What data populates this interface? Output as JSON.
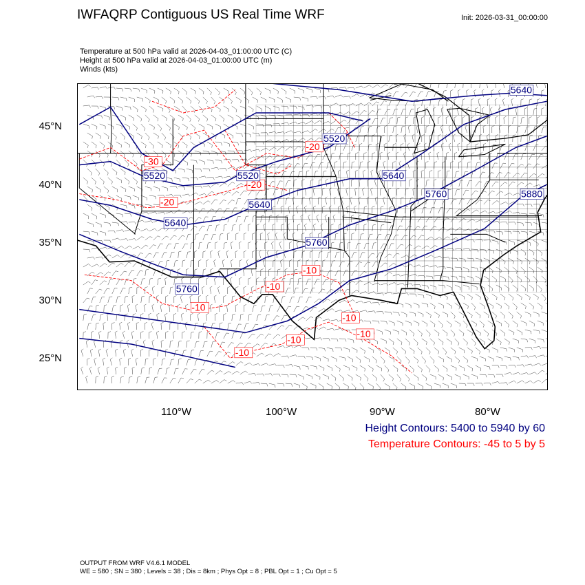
{
  "header": {
    "title": "IWFAQRP Contiguous US Real Time WRF",
    "init": "Init: 2026-03-31_00:00:00"
  },
  "fields": {
    "temperature": "Temperature at 500 hPa valid at 2026-04-03_01:00:00 UTC   (C)",
    "height": "Height at 500 hPa valid at 2026-04-03_01:00:00 UTC   (m)",
    "winds": "Winds   (kts)"
  },
  "axes": {
    "lat_labels": [
      "45°N",
      "40°N",
      "35°N",
      "30°N",
      "25°N"
    ],
    "lon_labels": [
      "110°W",
      "100°W",
      "90°W",
      "80°W"
    ]
  },
  "contour_labels": {
    "height": [
      {
        "text": "5640",
        "lon": -78.5,
        "lat": 47.2
      },
      {
        "text": "5520",
        "lon": -96.5,
        "lat": 43.0
      },
      {
        "text": "5520",
        "lon": -113.8,
        "lat": 39.8
      },
      {
        "text": "5520",
        "lon": -104.8,
        "lat": 39.8
      },
      {
        "text": "5640",
        "lon": -90.8,
        "lat": 39.8
      },
      {
        "text": "5760",
        "lon": -86.7,
        "lat": 38.2
      },
      {
        "text": "5880",
        "lon": -77.5,
        "lat": 38.2
      },
      {
        "text": "5640",
        "lon": -103.7,
        "lat": 37.3
      },
      {
        "text": "5640",
        "lon": -111.8,
        "lat": 35.7
      },
      {
        "text": "5760",
        "lon": -98.2,
        "lat": 34.0
      },
      {
        "text": "5760",
        "lon": -110.7,
        "lat": 30.0
      }
    ],
    "temperature": [
      {
        "text": "-20",
        "lon": -98.2,
        "lat": 42.3
      },
      {
        "text": "-30",
        "lon": -113.7,
        "lat": 41.0
      },
      {
        "text": "-20",
        "lon": -103.8,
        "lat": 39.0
      },
      {
        "text": "-20",
        "lon": -112.2,
        "lat": 37.5
      },
      {
        "text": "-10",
        "lon": -98.5,
        "lat": 31.6
      },
      {
        "text": "-10",
        "lon": -102.0,
        "lat": 30.2
      },
      {
        "text": "-10",
        "lon": -109.2,
        "lat": 28.4
      },
      {
        "text": "-10",
        "lon": -94.7,
        "lat": 27.5
      },
      {
        "text": "-10",
        "lon": -93.3,
        "lat": 26.1
      },
      {
        "text": "-10",
        "lon": -100.0,
        "lat": 25.6
      },
      {
        "text": "-10",
        "lon": -105.0,
        "lat": 24.5
      }
    ]
  },
  "legend": {
    "height": "Height Contours: 5400 to 5940 by 60",
    "temperature": "Temperature Contours: -45 to 5 by 5"
  },
  "footer": {
    "line1": "OUTPUT FROM WRF V4.6.1 MODEL",
    "line2": "WE = 580 ; SN = 380 ; Levels = 38 ; Dis = 8km ; Phys Opt = 8 ; PBL Opt = 1 ; Cu Opt = 5"
  },
  "colors": {
    "height_contour": "#000080",
    "temperature_contour": "#ff0000",
    "wind_barb": "#000000"
  },
  "icons": [
    "wind-barb-icon"
  ]
}
